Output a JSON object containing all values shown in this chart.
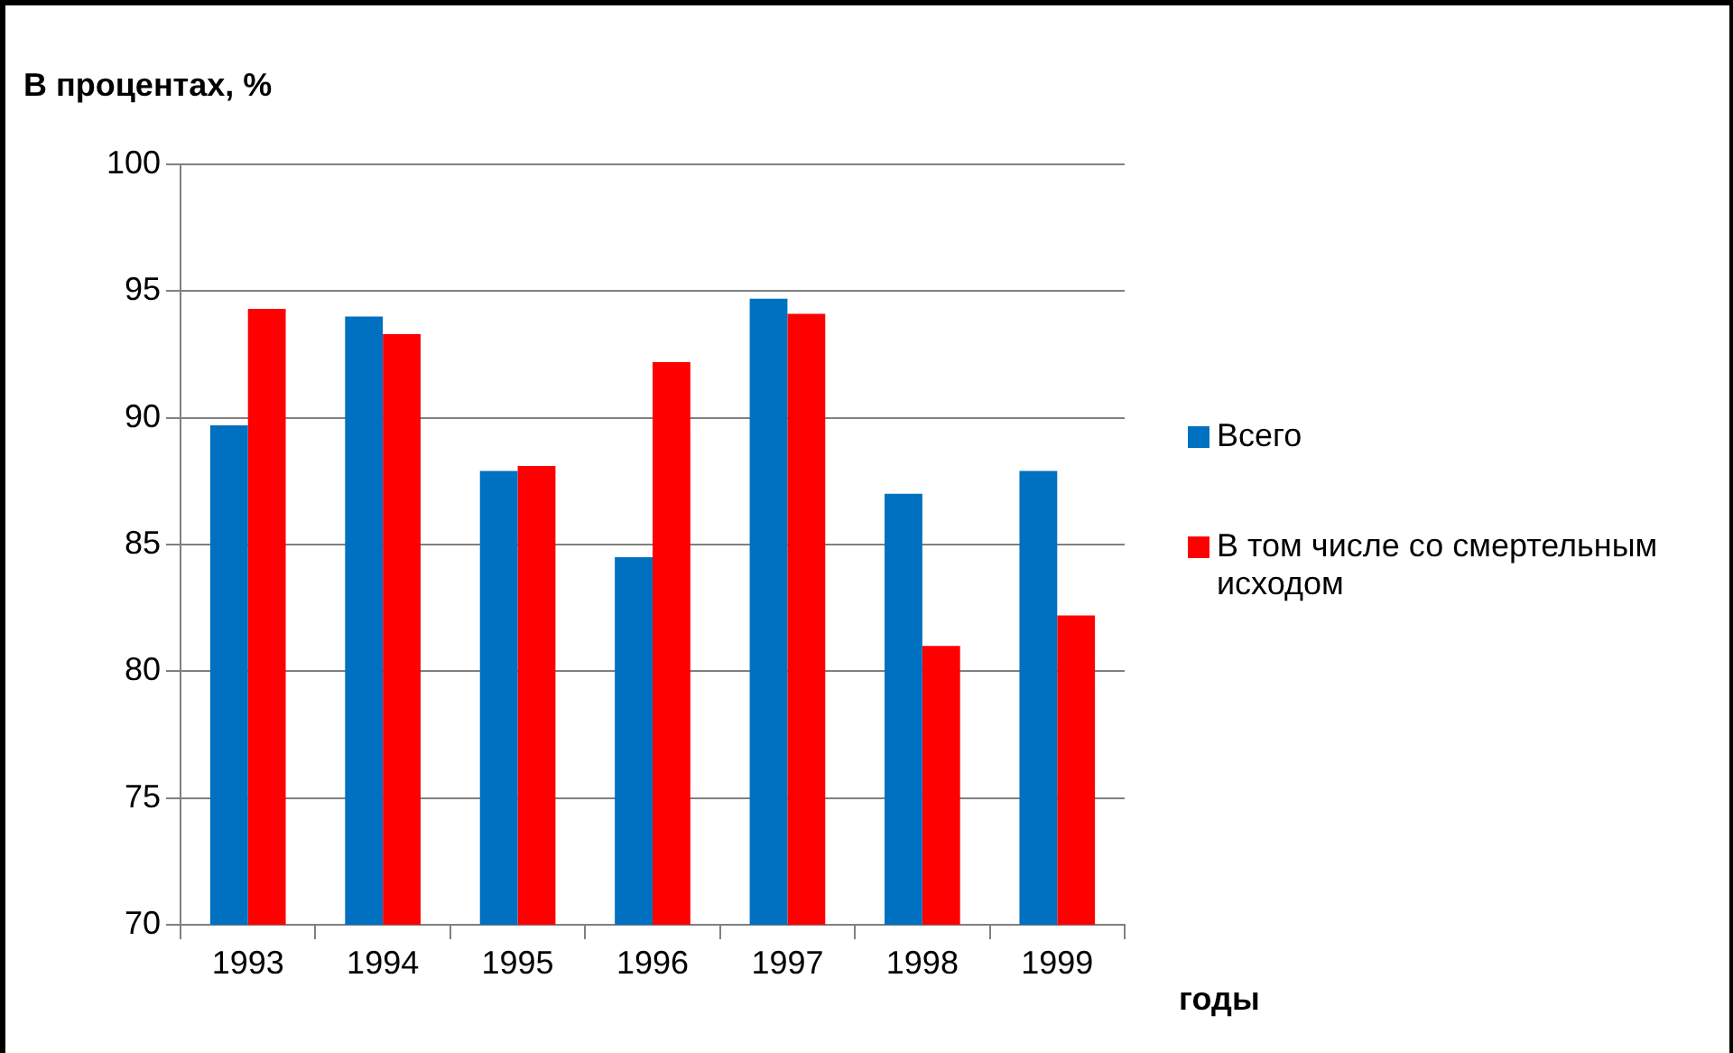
{
  "chart_data": {
    "type": "bar",
    "ylabel": "В процентах, %",
    "xlabel": "годы",
    "categories": [
      "1993",
      "1994",
      "1995",
      "1996",
      "1997",
      "1998",
      "1999"
    ],
    "series": [
      {
        "name": "Всего",
        "color": "#0070c0",
        "values": [
          89.7,
          94.0,
          87.9,
          84.5,
          94.7,
          87.0,
          87.9
        ]
      },
      {
        "name": "В том числе со смертельным исходом",
        "color": "#ff0000",
        "values": [
          94.3,
          93.3,
          88.1,
          92.2,
          94.1,
          81.0,
          82.2
        ]
      }
    ],
    "ylim": [
      70,
      100
    ],
    "yticks": [
      70,
      75,
      80,
      85,
      90,
      95,
      100
    ],
    "grid": "y",
    "legend": "right"
  }
}
